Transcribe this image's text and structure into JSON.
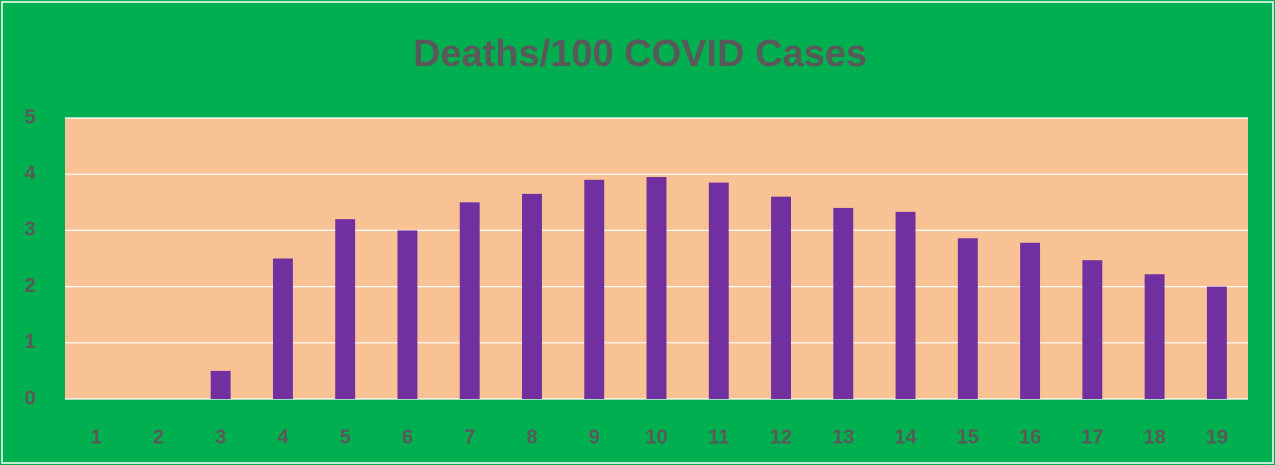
{
  "chart_data": {
    "type": "bar",
    "title": "Deaths/100 COVID Cases",
    "categories": [
      "1",
      "2",
      "3",
      "4",
      "5",
      "6",
      "7",
      "8",
      "9",
      "10",
      "11",
      "12",
      "13",
      "14",
      "15",
      "16",
      "17",
      "18",
      "19"
    ],
    "values": [
      0,
      0,
      0.5,
      2.5,
      3.2,
      3.0,
      3.5,
      3.65,
      3.9,
      3.95,
      3.85,
      3.6,
      3.4,
      3.33,
      2.86,
      2.78,
      2.47,
      2.22,
      2.0
    ],
    "color": "#7030a0",
    "ylim": [
      0,
      5
    ],
    "yticks": [
      0,
      1,
      2,
      3,
      4,
      5
    ],
    "grid": true
  }
}
